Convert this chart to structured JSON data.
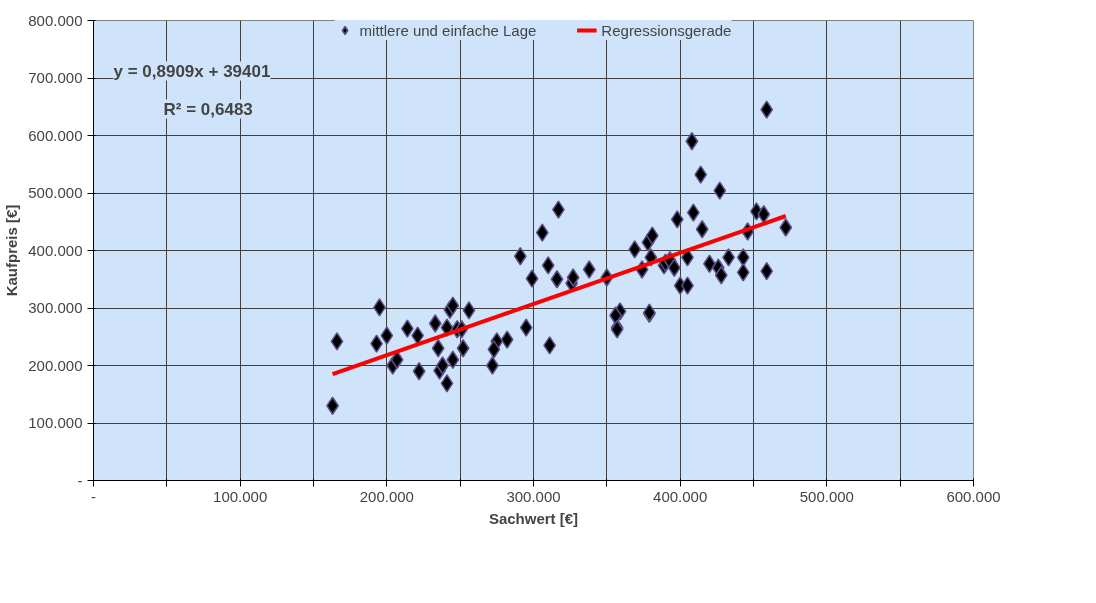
{
  "chart_data": {
    "type": "scatter",
    "xlabel": "Sachwert [€]",
    "ylabel": "Kaufpreis [€]",
    "annotations": [
      {
        "text": "y = 0,8909x + 39401"
      },
      {
        "text": "R² = 0,6483"
      }
    ],
    "series": [
      {
        "name": "mittlere und einfache Lage",
        "color": "#000000",
        "marker": "diamond",
        "x": [
          163000,
          166000,
          195000,
          193000,
          200000,
          204000,
          207000,
          214000,
          221000,
          222000,
          233000,
          235000,
          236000,
          238000,
          241000,
          243000,
          241000,
          245000,
          248000,
          245000,
          252000,
          256000,
          251000,
          272000,
          275000,
          282000,
          273000,
          291000,
          295000,
          299000,
          306000,
          311000,
          310000,
          316000,
          317000,
          326000,
          327000,
          338000,
          350000,
          359000,
          357000,
          369000,
          378000,
          374000,
          380000,
          389000,
          379000,
          381000,
          390000,
          393000,
          396000,
          398000,
          400000,
          405000,
          408000,
          414000,
          415000,
          427000,
          409000,
          420000,
          426000,
          405000,
          428000,
          433000,
          443000,
          446000,
          452000,
          457000,
          459000,
          472000,
          459000,
          443000,
          356000,
          379000,
          357000
        ],
        "values": [
          130000,
          242000,
          301000,
          238000,
          252000,
          200000,
          210000,
          264000,
          252000,
          190000,
          273000,
          230000,
          191000,
          200000,
          266000,
          297000,
          169000,
          210000,
          263000,
          304000,
          230000,
          296000,
          263000,
          200000,
          242000,
          245000,
          228000,
          390000,
          266000,
          351000,
          431000,
          235000,
          374000,
          350000,
          471000,
          343000,
          353000,
          367000,
          353000,
          294000,
          266000,
          402000,
          414000,
          367000,
          388000,
          374000,
          290000,
          426000,
          379000,
          383000,
          370000,
          454000,
          339000,
          388000,
          590000,
          532000,
          437000,
          504000,
          466000,
          377000,
          370000,
          339000,
          357000,
          388000,
          388000,
          433000,
          468000,
          463000,
          364000,
          440000,
          645000,
          362000,
          287000,
          292000,
          263000
        ]
      },
      {
        "name": "Regressionsgerade",
        "type": "line",
        "color": "#ff0000",
        "marker": "none",
        "x": [
          163000,
          472000
        ],
        "values": [
          185000,
          460000
        ]
      }
    ],
    "xlim": [
      0,
      600000
    ],
    "ylim": [
      0,
      800000
    ],
    "xticks": [
      {
        "value": 0,
        "label": "-"
      },
      {
        "value": 50000,
        "label": null
      },
      {
        "value": 100000,
        "label": "100.000"
      },
      {
        "value": 150000,
        "label": null
      },
      {
        "value": 200000,
        "label": "200.000"
      },
      {
        "value": 250000,
        "label": null
      },
      {
        "value": 300000,
        "label": "300.000"
      },
      {
        "value": 350000,
        "label": null
      },
      {
        "value": 400000,
        "label": "400.000"
      },
      {
        "value": 450000,
        "label": null
      },
      {
        "value": 500000,
        "label": "500.000"
      },
      {
        "value": 550000,
        "label": null
      },
      {
        "value": 600000,
        "label": "600.000"
      }
    ],
    "yticks": [
      {
        "value": 0,
        "label": "-"
      },
      {
        "value": 100000,
        "label": "100.000"
      },
      {
        "value": 200000,
        "label": "200.000"
      },
      {
        "value": 300000,
        "label": "300.000"
      },
      {
        "value": 400000,
        "label": "400.000"
      },
      {
        "value": 500000,
        "label": "500.000"
      },
      {
        "value": 600000,
        "label": "600.000"
      },
      {
        "value": 700000,
        "label": "700.000"
      },
      {
        "value": 800000,
        "label": "800.000"
      }
    ],
    "grid": true,
    "legend": "top"
  }
}
